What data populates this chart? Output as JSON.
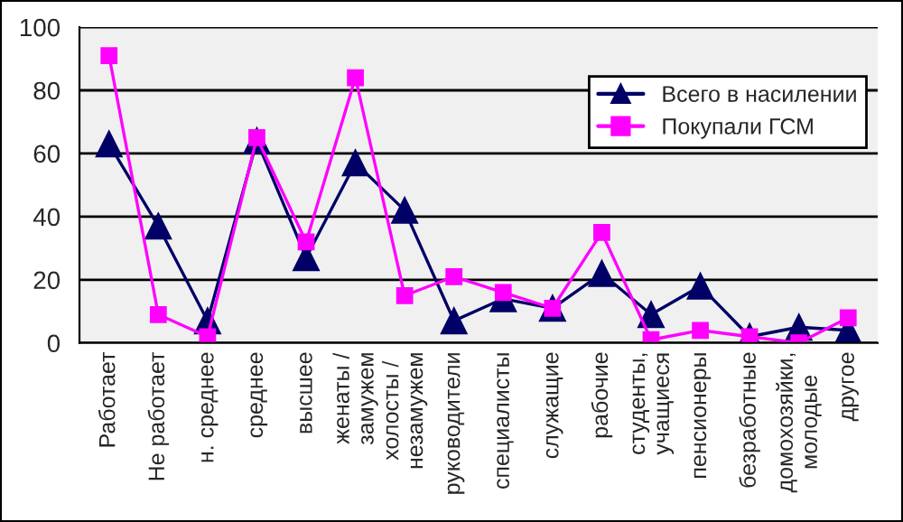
{
  "chart_data": {
    "type": "line",
    "categories": [
      "Работает",
      "Не работает",
      "н. среднее",
      "среднее",
      "высшее",
      "женаты /\nзамужем",
      "холосты /\nнезамужем",
      "руководители",
      "специалисты",
      "служащие",
      "рабочие",
      "студенты,\nучащиеся",
      "пенсионеры",
      "безработные",
      "домохозяйки,\nмолодые",
      "другое"
    ],
    "series": [
      {
        "name": "Всего в насилении",
        "color": "#000066",
        "marker": "triangle",
        "values": [
          63,
          37,
          7,
          64,
          27,
          57,
          42,
          7,
          14,
          11,
          22,
          9,
          18,
          2,
          5,
          4
        ]
      },
      {
        "name": "Покупали ГСМ",
        "color": "#ff00ff",
        "marker": "square",
        "values": [
          91,
          9,
          2,
          65,
          32,
          84,
          15,
          21,
          16,
          11,
          35,
          1,
          4,
          2,
          0,
          8
        ]
      }
    ],
    "ylim": [
      0,
      100
    ],
    "yticks": [
      0,
      20,
      40,
      60,
      80,
      100
    ],
    "grid": "y",
    "legend": "top right",
    "line_style": "solid"
  }
}
